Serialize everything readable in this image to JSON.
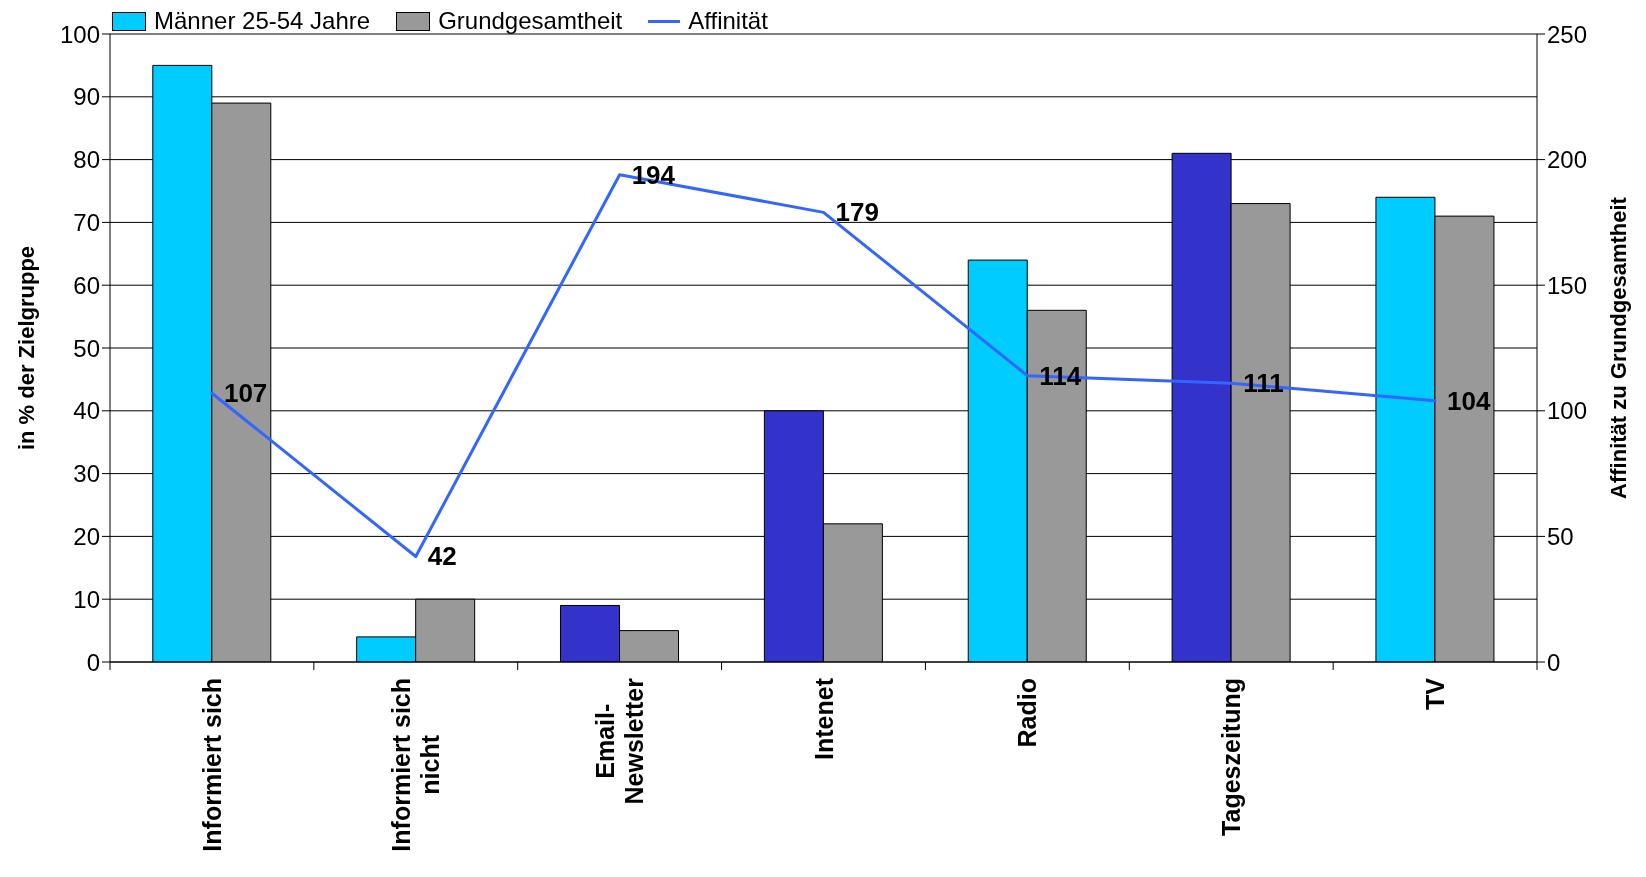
{
  "chart_data": {
    "type": "bar",
    "categories": [
      "Informiert sich",
      "Informiert sich nicht",
      "Email-Newsletter",
      "Intenet",
      "Radio",
      "Tageszeitung",
      "TV"
    ],
    "series": [
      {
        "name": "Männer 25-54 Jahre",
        "color": "#00ccff",
        "colors": [
          "#00ccff",
          "#00ccff",
          "#3333cc",
          "#3333cc",
          "#00ccff",
          "#3333cc",
          "#00ccff"
        ],
        "values": [
          95,
          4,
          9,
          40,
          64,
          81,
          74
        ]
      },
      {
        "name": "Grundgesamtheit",
        "color": "#999999",
        "values": [
          89,
          10,
          5,
          22,
          56,
          73,
          71
        ]
      },
      {
        "name": "Affinität",
        "type": "line",
        "axis": "y2",
        "color": "#3366ff",
        "marker": "none",
        "data_labels": true,
        "values": [
          107,
          42,
          194,
          179,
          114,
          111,
          104
        ]
      }
    ],
    "ylabel": "in % der Zielgruppe",
    "y2label": "Affinität zu Grundgesamtheit",
    "ylim": [
      0,
      100
    ],
    "yticks": [
      0,
      10,
      20,
      30,
      40,
      50,
      60,
      70,
      80,
      90,
      100
    ],
    "y2lim": [
      0,
      250
    ],
    "y2ticks": [
      0,
      50,
      100,
      150,
      200,
      250
    ],
    "grid": "y",
    "legend": "top left"
  }
}
